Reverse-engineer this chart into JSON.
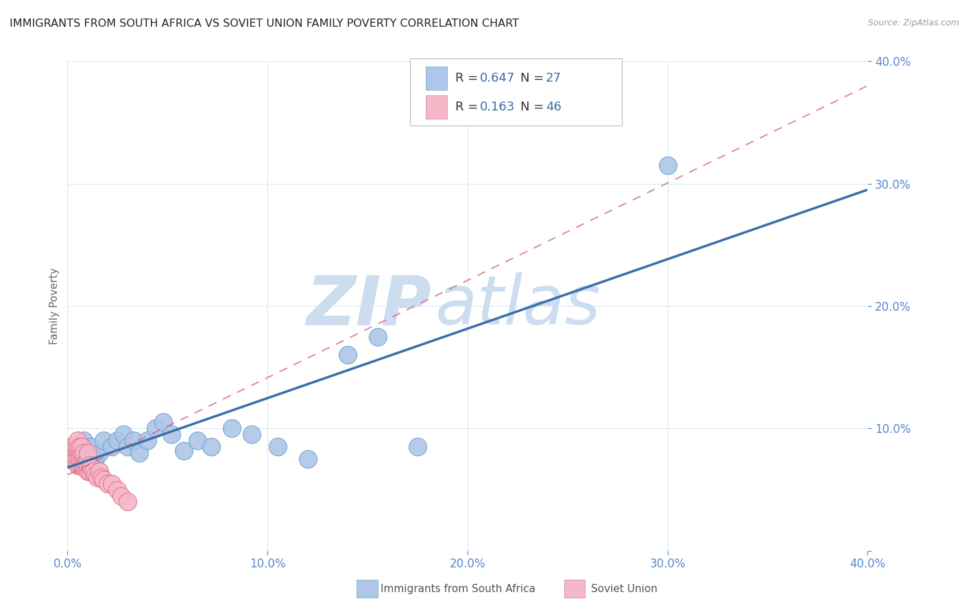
{
  "title": "IMMIGRANTS FROM SOUTH AFRICA VS SOVIET UNION FAMILY POVERTY CORRELATION CHART",
  "source": "Source: ZipAtlas.com",
  "ylabel": "Family Poverty",
  "xlim": [
    0.0,
    0.4
  ],
  "ylim": [
    0.0,
    0.4
  ],
  "xticks": [
    0.0,
    0.1,
    0.2,
    0.3,
    0.4
  ],
  "yticks": [
    0.0,
    0.1,
    0.2,
    0.3,
    0.4
  ],
  "xtick_labels": [
    "0.0%",
    "10.0%",
    "20.0%",
    "30.0%",
    "40.0%"
  ],
  "ytick_labels_right": [
    "",
    "10.0%",
    "20.0%",
    "30.0%",
    "40.0%"
  ],
  "blue_R": 0.647,
  "blue_N": 27,
  "pink_R": 0.163,
  "pink_N": 46,
  "blue_color": "#aec6e8",
  "blue_edge": "#6fa0cc",
  "blue_line_color": "#3a6ea8",
  "pink_color": "#f5b8c8",
  "pink_edge": "#e07090",
  "pink_line_color": "#d06080",
  "watermark_zip": "ZIP",
  "watermark_atlas": "atlas",
  "watermark_color": "#ccddf0",
  "tick_color": "#5588cc",
  "grid_color": "#ccddee",
  "background_color": "#ffffff",
  "title_fontsize": 11.5,
  "axis_label_fontsize": 11,
  "tick_fontsize": 12,
  "blue_scatter_x": [
    0.008,
    0.01,
    0.012,
    0.014,
    0.016,
    0.018,
    0.022,
    0.025,
    0.028,
    0.03,
    0.033,
    0.036,
    0.04,
    0.044,
    0.048,
    0.052,
    0.058,
    0.065,
    0.072,
    0.082,
    0.092,
    0.105,
    0.12,
    0.14,
    0.155,
    0.175,
    0.3
  ],
  "blue_scatter_y": [
    0.09,
    0.08,
    0.085,
    0.075,
    0.08,
    0.09,
    0.085,
    0.09,
    0.095,
    0.085,
    0.09,
    0.08,
    0.09,
    0.1,
    0.105,
    0.095,
    0.082,
    0.09,
    0.085,
    0.1,
    0.095,
    0.085,
    0.075,
    0.16,
    0.175,
    0.085,
    0.315
  ],
  "pink_scatter_x": [
    0.001,
    0.002,
    0.002,
    0.003,
    0.003,
    0.004,
    0.004,
    0.004,
    0.005,
    0.005,
    0.005,
    0.005,
    0.005,
    0.006,
    0.006,
    0.006,
    0.006,
    0.006,
    0.007,
    0.007,
    0.007,
    0.007,
    0.008,
    0.008,
    0.008,
    0.008,
    0.009,
    0.009,
    0.01,
    0.01,
    0.01,
    0.01,
    0.011,
    0.011,
    0.012,
    0.013,
    0.014,
    0.015,
    0.016,
    0.017,
    0.018,
    0.02,
    0.022,
    0.025,
    0.027,
    0.03
  ],
  "pink_scatter_y": [
    0.075,
    0.085,
    0.08,
    0.08,
    0.075,
    0.08,
    0.075,
    0.085,
    0.08,
    0.075,
    0.07,
    0.085,
    0.09,
    0.075,
    0.07,
    0.08,
    0.075,
    0.085,
    0.07,
    0.075,
    0.08,
    0.085,
    0.068,
    0.075,
    0.07,
    0.08,
    0.068,
    0.072,
    0.065,
    0.07,
    0.075,
    0.08,
    0.065,
    0.07,
    0.068,
    0.065,
    0.062,
    0.06,
    0.065,
    0.06,
    0.058,
    0.055,
    0.055,
    0.05,
    0.045,
    0.04
  ],
  "blue_line_x": [
    0.0,
    0.4
  ],
  "blue_line_y": [
    0.068,
    0.295
  ],
  "pink_line_x": [
    0.0,
    0.4
  ],
  "pink_line_y": [
    0.062,
    0.38
  ]
}
